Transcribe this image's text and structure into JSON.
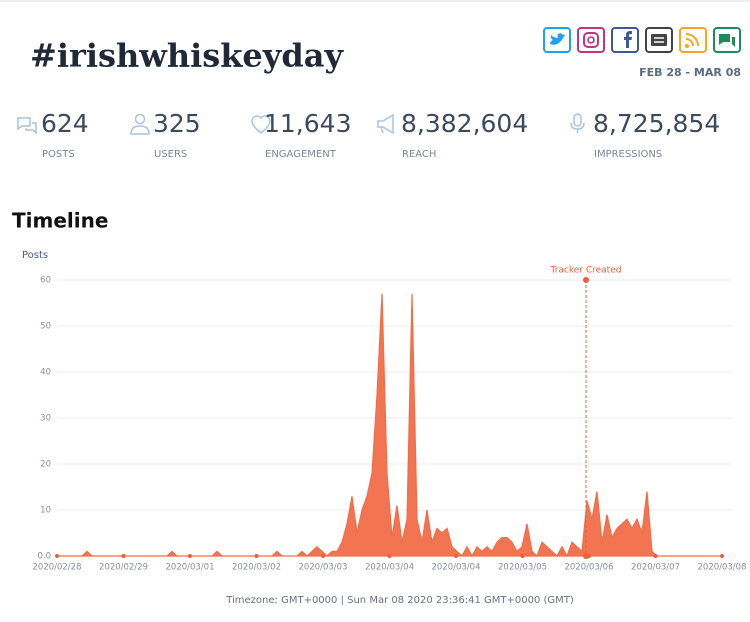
{
  "header": {
    "title": "#irishwhiskeyday",
    "date_range": "FEB 28 - MAR 08"
  },
  "stats": [
    {
      "value": "624",
      "label": "POSTS"
    },
    {
      "value": "325",
      "label": "USERS"
    },
    {
      "value": "11,643",
      "label": "ENGAGEMENT"
    },
    {
      "value": "8,382,604",
      "label": "REACH"
    },
    {
      "value": "8,725,854",
      "label": "IMPRESSIONS"
    }
  ],
  "section_title": "Timeline",
  "chart_data": {
    "type": "area",
    "y_label": "Posts",
    "color": "#f26d47",
    "grid": true,
    "ylim": [
      0,
      60
    ],
    "yticks": [
      {
        "value": 0,
        "label": "0.0"
      },
      10,
      20,
      30,
      40,
      50,
      60
    ],
    "xticks": [
      "2020/02/28",
      "2020/02/29",
      "2020/03/01",
      "2020/03/02",
      "2020/03/03",
      "2020/03/04",
      "2020/03/04",
      "2020/03/05",
      "2020/03/06",
      "2020/03/07",
      "2020/03/08"
    ],
    "annotation": "Tracker Created",
    "values": [
      0,
      0,
      0,
      0,
      0,
      0,
      1,
      0,
      0,
      0,
      0,
      0,
      0,
      0,
      0,
      0,
      0,
      0,
      0,
      0,
      0,
      0,
      0,
      1,
      0,
      0,
      0,
      0,
      0,
      0,
      0,
      0,
      1,
      0,
      0,
      0,
      0,
      0,
      0,
      0,
      0,
      0,
      0,
      0,
      1,
      0,
      0,
      0,
      0,
      1,
      0,
      1,
      2,
      1,
      0,
      1,
      1,
      3,
      7,
      13,
      5,
      10,
      13,
      18,
      35,
      57,
      18,
      4,
      11,
      3,
      8,
      57,
      8,
      3,
      10,
      3,
      6,
      5,
      6,
      2,
      1,
      0,
      2,
      0,
      2,
      1,
      2,
      1,
      3,
      4,
      4,
      3,
      1,
      2,
      7,
      1,
      0,
      3,
      2,
      1,
      0,
      2,
      0,
      3,
      2,
      1,
      12,
      8,
      14,
      3,
      9,
      4,
      6,
      7,
      8,
      6,
      8,
      5,
      14,
      1,
      0,
      0,
      0,
      0,
      0,
      0,
      0,
      0,
      0,
      0,
      0,
      0,
      0,
      0
    ]
  },
  "footer": "Timezone: GMT+0000 | Sun Mar 08 2020 23:36:41 GMT+0000 (GMT)"
}
